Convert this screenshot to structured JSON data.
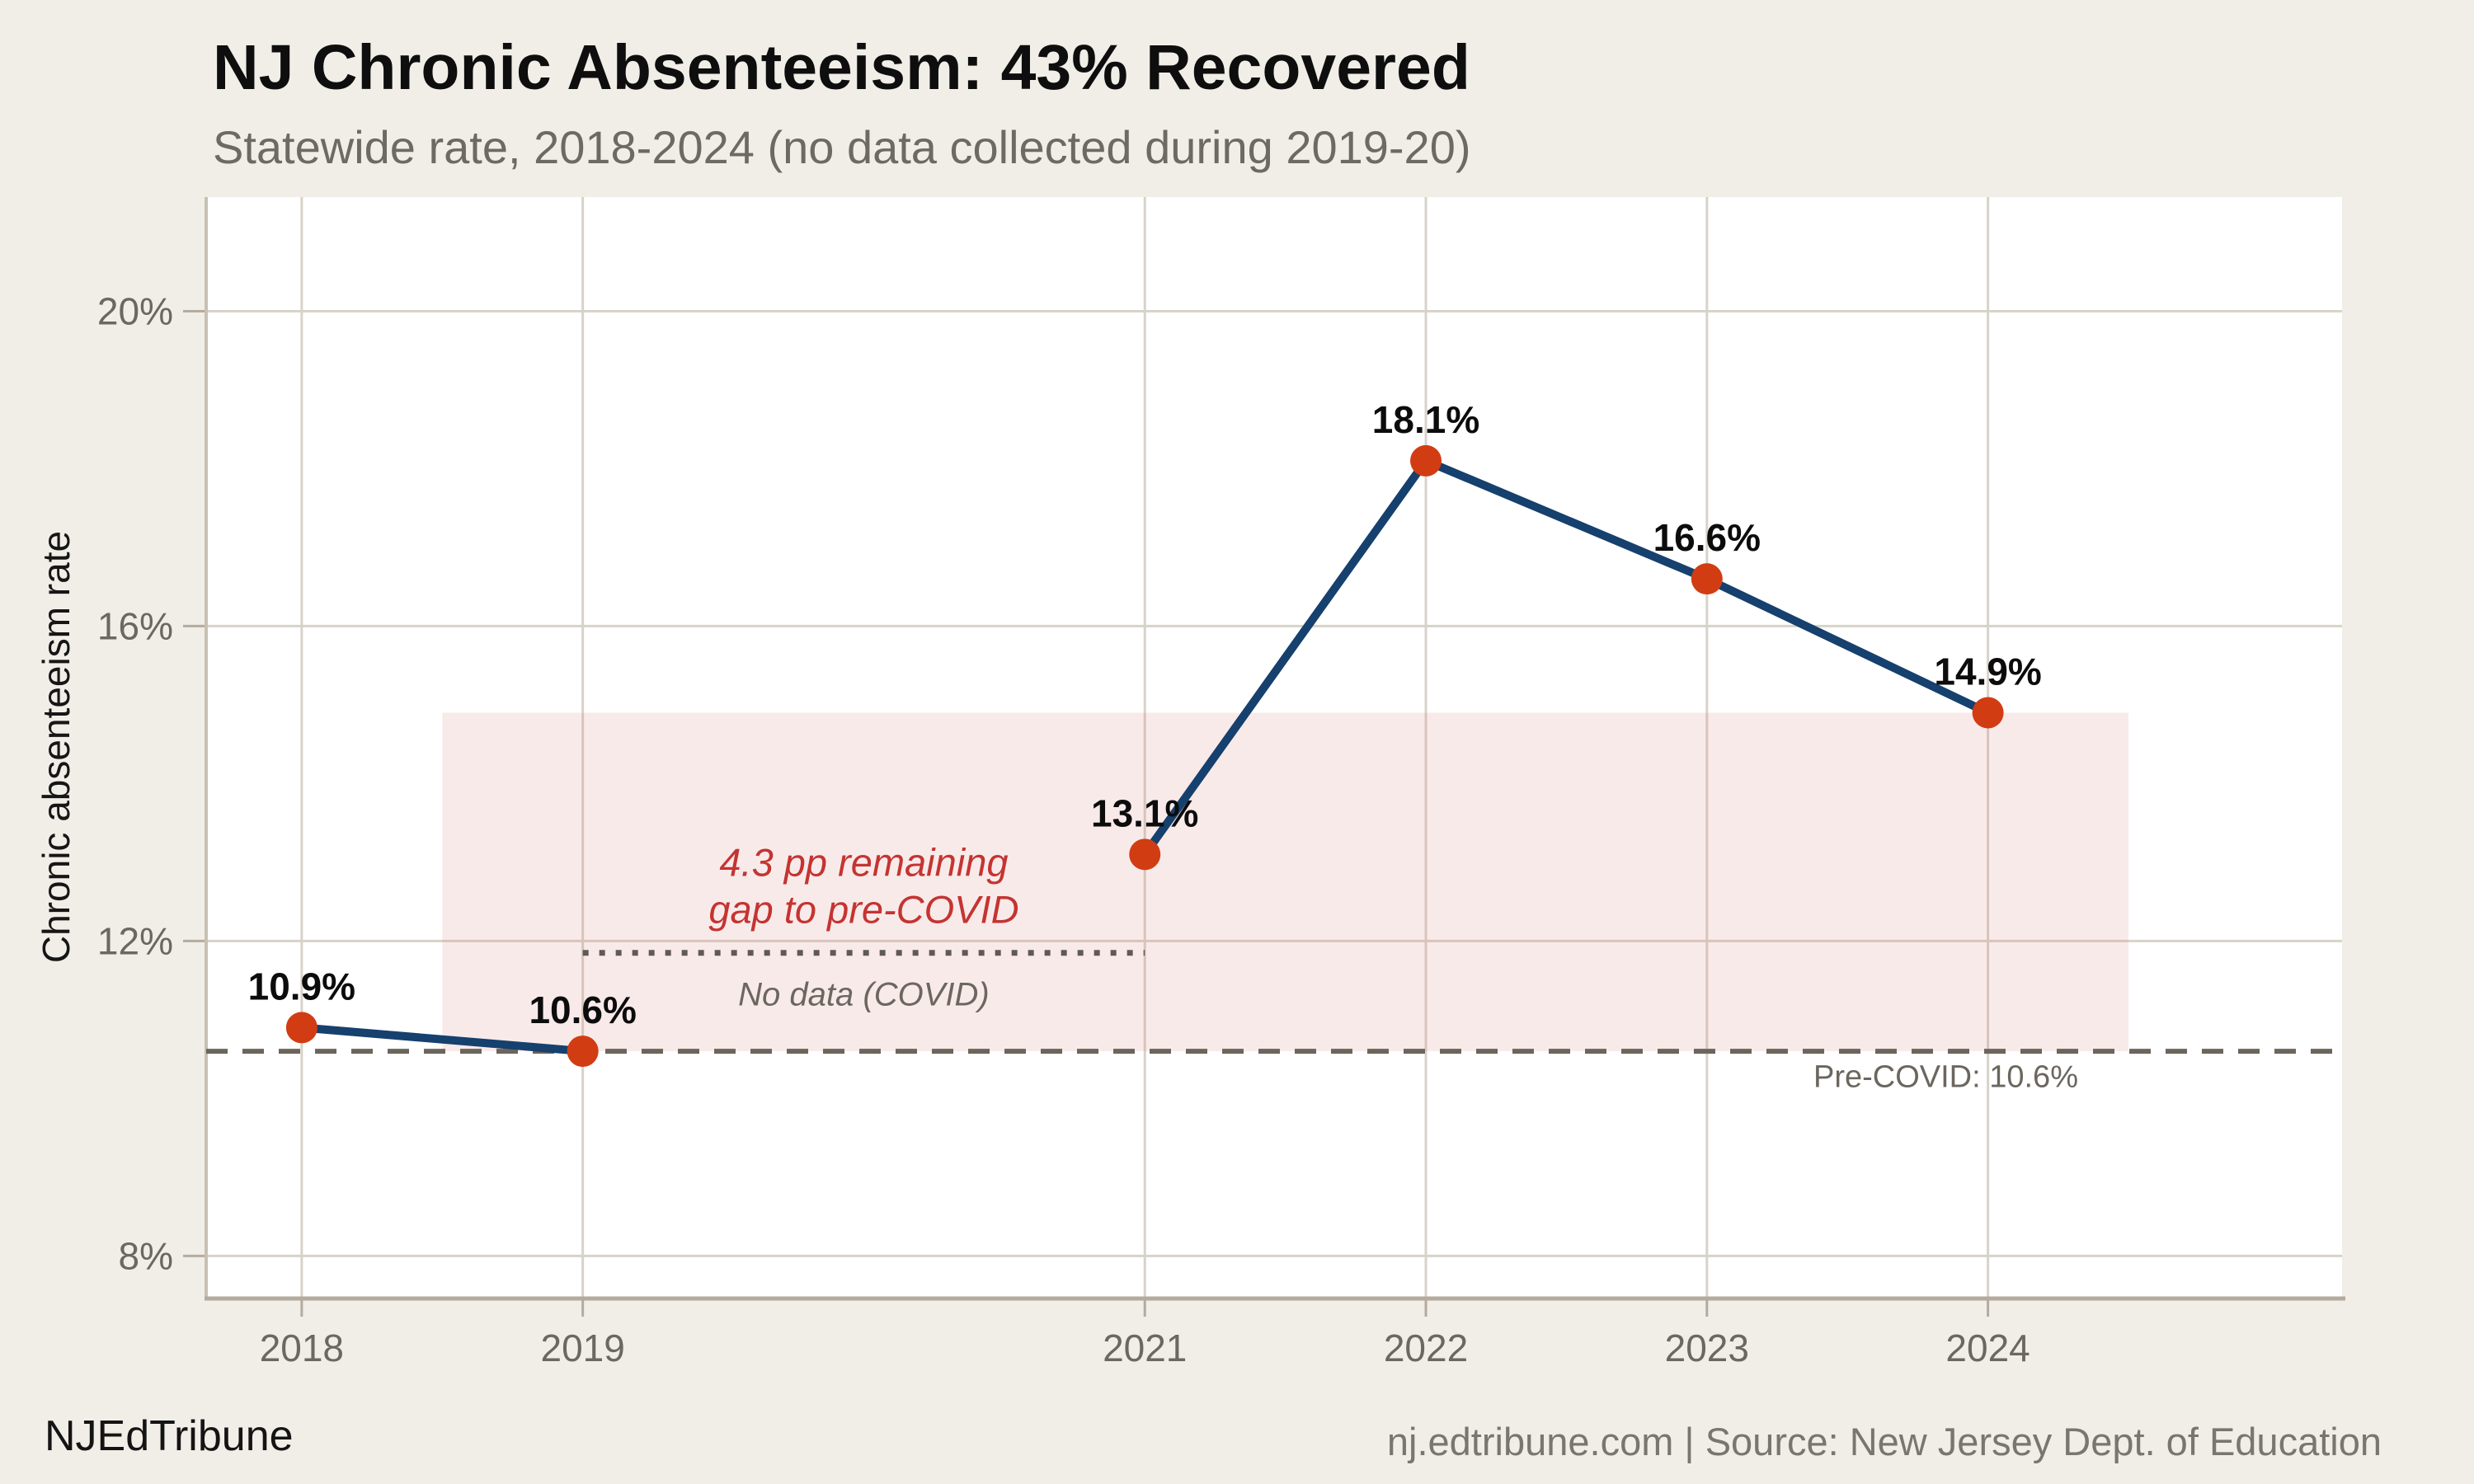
{
  "footer": {
    "brand": "NJEdTribune",
    "attribution": "nj.edtribune.com | Source: New Jersey Dept. of Education"
  },
  "chart_data": {
    "type": "line",
    "title": "NJ Chronic Absenteeism: 43% Recovered",
    "subtitle": "Statewide rate, 2018-2024 (no data collected during 2019-20)",
    "ylabel": "Chronic absenteeism rate",
    "xlabel": "",
    "x": [
      2018,
      2019,
      2021,
      2022,
      2023,
      2024
    ],
    "values": [
      10.9,
      10.6,
      13.1,
      18.1,
      16.6,
      14.9
    ],
    "point_labels": [
      "10.9%",
      "10.6%",
      "13.1%",
      "18.1%",
      "16.6%",
      "14.9%"
    ],
    "segments": [
      [
        2018,
        2019
      ],
      [
        2021,
        2022,
        2023,
        2024
      ]
    ],
    "x_tick_labels": [
      "2018",
      "2019",
      "2021",
      "2022",
      "2023",
      "2024"
    ],
    "y_ticks": [
      20,
      16,
      12,
      8
    ],
    "y_tick_labels": [
      "20%",
      "16%",
      "12%",
      "8%"
    ],
    "xlim": [
      2017.66,
      2025.26
    ],
    "ylim": [
      7.48,
      21.45
    ],
    "grid": true,
    "legend": false,
    "reference_line": {
      "value": 10.6,
      "label": "Pre-COVID: 10.6%",
      "label_anchor_x": 2023.85,
      "label_anchor_y": 10.27
    },
    "covid_gap_line": {
      "x_from": 2019,
      "x_to": 2021,
      "value": 11.85,
      "label": "No data (COVID)",
      "label_anchor_x": 2020,
      "label_anchor_y": 11.32
    },
    "gap_band": {
      "x_from": 2018.5,
      "x_to": 2024.5,
      "y_from": 10.6,
      "y_to": 14.9,
      "label_lines": [
        "4.3 pp remaining",
        "gap to pre-COVID"
      ],
      "label_anchor_x": 2020,
      "label_line_y": [
        13.0,
        12.4
      ]
    },
    "colors": {
      "line": "#16406d",
      "point": "#d23c13",
      "band": "rgba(214,104,104,0.14)",
      "gap_text": "#c43431",
      "muted_text": "#6b675f",
      "reference_line": "#6b655c",
      "dotted_line": "#5f5a52",
      "grid": "#d8d3c9",
      "spine": "#b4ab9e",
      "left_spine": "#c7c0b4",
      "tick_text": "#6c675f",
      "plot_bg": "#ffffff",
      "page_bg": "#f1eee8",
      "title": "#0e0e0e"
    }
  }
}
